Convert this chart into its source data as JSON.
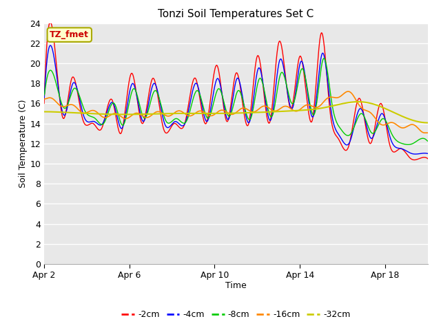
{
  "title": "Tonzi Soil Temperatures Set C",
  "xlabel": "Time",
  "ylabel": "Soil Temperature (C)",
  "annotation": "TZ_fmet",
  "ylim": [
    0,
    24
  ],
  "yticks": [
    0,
    2,
    4,
    6,
    8,
    10,
    12,
    14,
    16,
    18,
    20,
    22,
    24
  ],
  "xtick_days": [
    0,
    4,
    8,
    12,
    16
  ],
  "xtick_labels": [
    "Apr 2",
    "Apr 6",
    "Apr 10",
    "Apr 14",
    "Apr 18"
  ],
  "colors": {
    "-2cm": "#ff0000",
    "-4cm": "#0000ff",
    "-8cm": "#00cc00",
    "-16cm": "#ff8800",
    "-32cm": "#cccc00"
  },
  "legend_entries": [
    "-2cm",
    "-4cm",
    "-8cm",
    "-16cm",
    "-32cm"
  ]
}
